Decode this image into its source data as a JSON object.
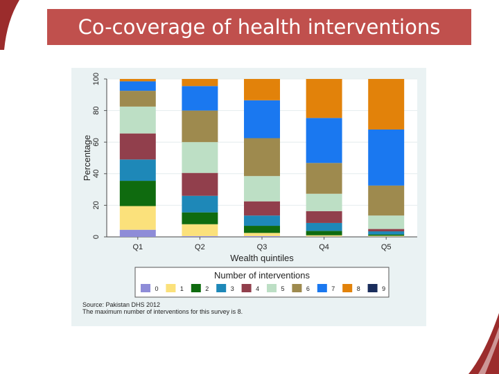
{
  "slide": {
    "title": "Co-coverage of health interventions",
    "accent_color": "#c0504d"
  },
  "chart_data": {
    "type": "bar",
    "stacked": true,
    "categories": [
      "Q1",
      "Q2",
      "Q3",
      "Q4",
      "Q5"
    ],
    "xlabel": "Wealth quintiles",
    "ylabel": "Percentage",
    "ylim": [
      0,
      100
    ],
    "yticks": [
      0,
      20,
      40,
      60,
      80,
      100
    ],
    "grid": true,
    "legend": {
      "title": "Number of interventions",
      "position": "bottom"
    },
    "series": [
      {
        "name": "0",
        "color": "#8e8cd8",
        "values": [
          4.5,
          0.5,
          0.5,
          0.2,
          0.2
        ]
      },
      {
        "name": "1",
        "color": "#fbe17b",
        "values": [
          15,
          7.5,
          2,
          0.8,
          0.5
        ]
      },
      {
        "name": "2",
        "color": "#0f6b0f",
        "values": [
          16,
          7.5,
          4.5,
          2.8,
          0.8
        ]
      },
      {
        "name": "3",
        "color": "#1e88b8",
        "values": [
          13.5,
          10.5,
          6.5,
          5,
          2
        ]
      },
      {
        "name": "4",
        "color": "#913f4c",
        "values": [
          16.5,
          14.5,
          9,
          7.5,
          1.5
        ]
      },
      {
        "name": "5",
        "color": "#bddfc5",
        "values": [
          17,
          19.5,
          16,
          11,
          8.5
        ]
      },
      {
        "name": "6",
        "color": "#9e8a4e",
        "values": [
          10,
          20,
          24,
          19.5,
          19
        ]
      },
      {
        "name": "7",
        "color": "#1a78f0",
        "values": [
          6,
          15.5,
          24,
          28.5,
          35.5
        ]
      },
      {
        "name": "8",
        "color": "#e2820a",
        "values": [
          1.5,
          4.5,
          13.5,
          24.7,
          32
        ]
      },
      {
        "name": "9",
        "color": "#1a2d5c",
        "values": [
          0,
          0,
          0,
          0,
          0
        ]
      }
    ],
    "notes": [
      "Source: Pakistan DHS 2012",
      "The maximum number of interventions for this survey is 8."
    ]
  }
}
